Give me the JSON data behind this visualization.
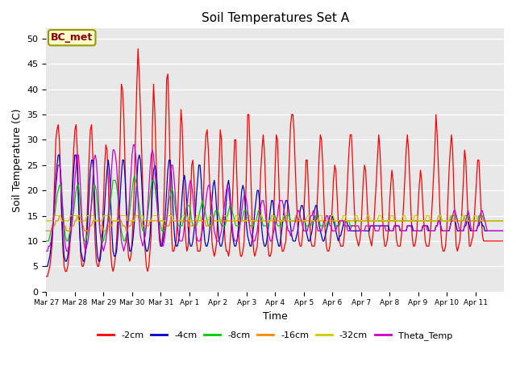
{
  "title": "Soil Temperatures Set A",
  "xlabel": "Time",
  "ylabel": "Soil Temperature (C)",
  "ylim": [
    0,
    52
  ],
  "background_color": "#e8e8e8",
  "annotation": "BC_met",
  "series_colors": {
    "-2cm": "#ff0000",
    "-4cm": "#0000cc",
    "-8cm": "#00cc00",
    "-16cm": "#ff8800",
    "-32cm": "#cccc00",
    "Theta_Temp": "#cc00cc"
  },
  "x_labels": [
    "Mar 27",
    "Mar 28",
    "Mar 29",
    "Mar 30",
    "Mar 31",
    "Apr 1",
    "Apr 2",
    "Apr 3",
    "Apr 4",
    "Apr 5",
    "Apr 6",
    "Apr 7",
    "Apr 8",
    "Apr 9",
    "Apr 10",
    "Apr 11"
  ],
  "n_days": 16,
  "pts_per_day": 24,
  "data_2cm": [
    3,
    3,
    4,
    5,
    7,
    10,
    15,
    22,
    30,
    32,
    33,
    30,
    22,
    14,
    8,
    5,
    4,
    4,
    5,
    7,
    10,
    16,
    22,
    28,
    32,
    33,
    28,
    20,
    12,
    7,
    5,
    5,
    6,
    9,
    13,
    20,
    27,
    32,
    33,
    27,
    18,
    10,
    6,
    5,
    5,
    7,
    9,
    12,
    18,
    25,
    29,
    28,
    22,
    14,
    8,
    5,
    4,
    5,
    7,
    10,
    15,
    22,
    30,
    41,
    40,
    35,
    26,
    17,
    10,
    7,
    6,
    7,
    10,
    15,
    22,
    32,
    41,
    48,
    43,
    36,
    28,
    20,
    12,
    8,
    5,
    4,
    5,
    8,
    11,
    32,
    41,
    36,
    28,
    20,
    14,
    10,
    9,
    9,
    12,
    20,
    30,
    42,
    43,
    35,
    22,
    12,
    8,
    8,
    9,
    10,
    14,
    20,
    27,
    36,
    33,
    25,
    15,
    10,
    8,
    9,
    12,
    18,
    25,
    26,
    22,
    16,
    10,
    8,
    8,
    8,
    10,
    14,
    20,
    27,
    31,
    32,
    28,
    22,
    16,
    10,
    8,
    7,
    8,
    10,
    16,
    25,
    32,
    30,
    22,
    15,
    10,
    8,
    8,
    7,
    9,
    12,
    17,
    23,
    30,
    30,
    22,
    14,
    9,
    7,
    7,
    8,
    10,
    16,
    24,
    35,
    35,
    28,
    20,
    12,
    8,
    7,
    8,
    9,
    12,
    18,
    24,
    28,
    31,
    28,
    21,
    14,
    9,
    7,
    7,
    8,
    11,
    16,
    24,
    31,
    30,
    23,
    15,
    10,
    8,
    8,
    9,
    10,
    14,
    20,
    27,
    33,
    35,
    35,
    31,
    24,
    18,
    13,
    10,
    9,
    9,
    11,
    15,
    20,
    26,
    26,
    20,
    14,
    10,
    9,
    9,
    9,
    11,
    16,
    21,
    27,
    31,
    30,
    25,
    18,
    12,
    9,
    8,
    8,
    9,
    12,
    17,
    22,
    25,
    24,
    19,
    14,
    10,
    9,
    9,
    9,
    11,
    14,
    18,
    23,
    28,
    31,
    31,
    26,
    19,
    14,
    11,
    10,
    9,
    10,
    12,
    17,
    22,
    25,
    24,
    19,
    14,
    11,
    10,
    9,
    11,
    14,
    18,
    22,
    27,
    31,
    28,
    22,
    16,
    11,
    9,
    9,
    10,
    12,
    17,
    21,
    24,
    22,
    17,
    13,
    10,
    9,
    9,
    9,
    11,
    14,
    18,
    23,
    28,
    31,
    28,
    22,
    16,
    11,
    9,
    9,
    10,
    12,
    17,
    21,
    24,
    22,
    17,
    13,
    10,
    9,
    9,
    9,
    11,
    14,
    18,
    23,
    28,
    35,
    31,
    25,
    18,
    12,
    9,
    8,
    8,
    9,
    12,
    18,
    24,
    28,
    31,
    28,
    20,
    14,
    9,
    8,
    9,
    10,
    13,
    17,
    22,
    28,
    26,
    20,
    14,
    9,
    9,
    10,
    11,
    14,
    18,
    22,
    26,
    26,
    21,
    15,
    11,
    10,
    10,
    10,
    10,
    10,
    10,
    10,
    10,
    10,
    10,
    10,
    10,
    10,
    10,
    10,
    10,
    10
  ],
  "data_4cm": [
    5,
    5,
    6,
    7,
    9,
    11,
    14,
    18,
    22,
    25,
    27,
    27,
    23,
    16,
    10,
    7,
    6,
    6,
    7,
    9,
    12,
    16,
    20,
    24,
    27,
    27,
    24,
    18,
    12,
    8,
    7,
    6,
    6,
    8,
    11,
    15,
    20,
    24,
    26,
    26,
    22,
    16,
    10,
    7,
    6,
    6,
    8,
    10,
    13,
    17,
    21,
    24,
    26,
    24,
    18,
    12,
    8,
    7,
    7,
    8,
    11,
    15,
    19,
    23,
    26,
    26,
    23,
    18,
    13,
    10,
    8,
    8,
    9,
    11,
    14,
    18,
    22,
    26,
    27,
    26,
    22,
    17,
    12,
    9,
    8,
    8,
    9,
    11,
    15,
    20,
    24,
    25,
    24,
    21,
    16,
    12,
    9,
    9,
    10,
    12,
    16,
    20,
    24,
    26,
    26,
    23,
    18,
    13,
    10,
    9,
    9,
    10,
    12,
    15,
    19,
    22,
    23,
    21,
    17,
    13,
    10,
    9,
    9,
    10,
    12,
    15,
    19,
    22,
    25,
    25,
    22,
    17,
    13,
    10,
    9,
    9,
    10,
    12,
    15,
    18,
    21,
    22,
    20,
    16,
    13,
    10,
    9,
    9,
    10,
    12,
    14,
    18,
    21,
    22,
    20,
    16,
    12,
    10,
    9,
    9,
    10,
    12,
    14,
    17,
    20,
    21,
    20,
    17,
    13,
    11,
    10,
    9,
    9,
    11,
    13,
    16,
    18,
    20,
    20,
    18,
    15,
    12,
    10,
    9,
    9,
    10,
    12,
    14,
    16,
    18,
    18,
    16,
    13,
    11,
    10,
    9,
    9,
    11,
    13,
    15,
    17,
    18,
    18,
    17,
    15,
    13,
    11,
    10,
    10,
    10,
    11,
    12,
    14,
    16,
    17,
    17,
    16,
    14,
    12,
    11,
    10,
    10,
    11,
    12,
    14,
    16,
    17,
    17,
    15,
    13,
    12,
    11,
    10,
    10,
    11,
    12,
    13,
    14,
    15,
    15,
    15,
    14,
    13,
    12,
    11,
    10,
    11,
    11,
    12,
    13,
    14,
    14,
    14,
    13,
    13,
    12,
    12,
    12,
    12,
    12,
    12,
    12,
    12,
    12,
    12,
    12,
    12,
    12,
    12,
    12,
    12,
    12,
    13,
    13,
    13,
    13,
    13,
    13,
    13,
    13,
    13,
    13,
    13,
    13,
    13,
    13,
    13,
    13,
    12,
    12,
    12,
    12,
    13,
    13,
    13,
    13,
    13,
    12,
    12,
    12,
    12,
    12,
    12,
    13,
    13,
    13,
    13,
    13,
    12,
    12,
    12,
    12,
    12,
    12,
    12,
    12,
    13,
    13,
    13,
    13,
    13,
    12,
    12,
    12,
    12,
    12,
    12,
    13,
    13,
    14,
    14,
    13,
    12,
    12,
    12,
    12,
    12,
    12,
    12,
    13,
    14,
    14,
    14,
    14,
    13,
    12,
    12,
    12,
    12,
    12,
    12,
    13,
    13,
    14,
    14,
    13,
    12,
    12,
    12,
    12,
    12,
    12,
    13,
    13,
    14,
    14,
    13,
    13,
    12,
    12,
    12,
    12,
    12,
    12,
    12,
    12,
    12,
    12,
    12,
    12,
    12,
    12,
    12,
    12
  ],
  "data_8cm": [
    10,
    10,
    10,
    11,
    12,
    13,
    14,
    15,
    17,
    19,
    20,
    21,
    21,
    19,
    16,
    13,
    11,
    10,
    10,
    11,
    12,
    13,
    14,
    16,
    18,
    20,
    21,
    21,
    19,
    16,
    13,
    11,
    10,
    10,
    11,
    12,
    13,
    15,
    17,
    19,
    21,
    21,
    20,
    17,
    14,
    12,
    11,
    10,
    10,
    11,
    12,
    13,
    14,
    16,
    18,
    20,
    22,
    22,
    22,
    21,
    19,
    16,
    14,
    12,
    11,
    10,
    10,
    11,
    12,
    14,
    16,
    18,
    20,
    22,
    23,
    22,
    21,
    19,
    17,
    15,
    13,
    12,
    12,
    12,
    13,
    15,
    17,
    19,
    21,
    22,
    22,
    21,
    19,
    17,
    15,
    14,
    13,
    12,
    12,
    12,
    13,
    14,
    16,
    18,
    19,
    20,
    20,
    19,
    17,
    15,
    14,
    13,
    13,
    13,
    13,
    14,
    15,
    16,
    17,
    17,
    17,
    16,
    14,
    13,
    13,
    13,
    13,
    14,
    15,
    16,
    17,
    18,
    17,
    16,
    15,
    14,
    13,
    13,
    13,
    13,
    14,
    15,
    16,
    16,
    16,
    15,
    14,
    13,
    13,
    13,
    13,
    14,
    15,
    16,
    17,
    17,
    16,
    15,
    14,
    13,
    13,
    13,
    13,
    14,
    14,
    15,
    16,
    16,
    16,
    15,
    14,
    13,
    13,
    13,
    13,
    14,
    14,
    15,
    16,
    16,
    15,
    14,
    13,
    13,
    13,
    13,
    13,
    14,
    14,
    15,
    15,
    15,
    15,
    14,
    13,
    13,
    13,
    13,
    14,
    14,
    15,
    15,
    15,
    15,
    15,
    14,
    14,
    14,
    14,
    14,
    14,
    14,
    14,
    14,
    14,
    14,
    14,
    14,
    13,
    13,
    13,
    13,
    13,
    14,
    14,
    14,
    15,
    15,
    14,
    14,
    13,
    13,
    13,
    13,
    13,
    13,
    14,
    14,
    14,
    14,
    14,
    14,
    14,
    13,
    13,
    13,
    13,
    14,
    14,
    14,
    14,
    14,
    14,
    14,
    14,
    13,
    13,
    13,
    13,
    13,
    14,
    14,
    14,
    14,
    14,
    14,
    14,
    14,
    14,
    14,
    14,
    14,
    14,
    14,
    14,
    14,
    14,
    14,
    14,
    14,
    14,
    14,
    14,
    14,
    14,
    14,
    14,
    14,
    14,
    14,
    14,
    14,
    14,
    14,
    14,
    14,
    14,
    14,
    14,
    14,
    14,
    14,
    14,
    14,
    14,
    14,
    14,
    14,
    14,
    14,
    14,
    14,
    14,
    14,
    14,
    14,
    14,
    14,
    14,
    14,
    14,
    14,
    14,
    14,
    14,
    14,
    14,
    14,
    14,
    15,
    15,
    15,
    14,
    14,
    14,
    14,
    14,
    14,
    14,
    14,
    15,
    15,
    15,
    15,
    15,
    14,
    14,
    14,
    14,
    14,
    14,
    15,
    15,
    15,
    15,
    14,
    14,
    14,
    14,
    14,
    14,
    14,
    14,
    15,
    15,
    15,
    15,
    14,
    14,
    14,
    14,
    14,
    14,
    14,
    14,
    14,
    14,
    14,
    14,
    14,
    14,
    14,
    14,
    14
  ],
  "data_16cm": [
    12,
    12,
    12,
    12,
    12,
    13,
    13,
    13,
    14,
    14,
    14,
    15,
    15,
    14,
    14,
    13,
    13,
    12,
    12,
    12,
    12,
    13,
    13,
    13,
    14,
    14,
    15,
    15,
    15,
    14,
    13,
    13,
    12,
    12,
    12,
    12,
    13,
    13,
    13,
    14,
    14,
    14,
    14,
    14,
    14,
    13,
    13,
    13,
    12,
    12,
    12,
    12,
    13,
    13,
    13,
    13,
    14,
    14,
    14,
    14,
    14,
    14,
    14,
    14,
    13,
    13,
    13,
    12,
    12,
    13,
    13,
    13,
    14,
    14,
    14,
    15,
    15,
    15,
    14,
    14,
    14,
    13,
    13,
    13,
    13,
    13,
    13,
    14,
    14,
    14,
    14,
    14,
    14,
    14,
    14,
    14,
    14,
    14,
    14,
    13,
    13,
    13,
    13,
    13,
    14,
    14,
    14,
    14,
    14,
    14,
    14,
    14,
    14,
    14,
    14,
    14,
    14,
    14,
    14,
    13,
    13,
    13,
    13,
    13,
    13,
    14,
    14,
    14,
    14,
    14,
    14,
    14,
    14,
    14,
    13,
    13,
    13,
    13,
    13,
    14,
    14,
    14,
    14,
    14,
    14,
    14,
    14,
    14,
    14,
    14,
    14,
    14,
    14,
    14,
    14,
    14,
    14,
    14,
    14,
    14,
    14,
    14,
    14,
    14,
    14,
    14,
    14,
    14,
    14,
    14,
    14,
    14,
    14,
    14,
    14,
    14,
    14,
    14,
    14,
    14,
    14,
    14,
    14,
    14,
    14,
    14,
    14,
    14,
    14,
    14,
    14,
    14,
    14,
    14,
    14,
    14,
    14,
    14,
    14,
    14,
    14,
    14,
    14,
    14,
    14,
    14,
    14,
    14,
    14,
    14,
    14,
    14,
    14,
    14,
    14,
    14,
    14,
    14,
    14,
    14,
    14,
    14,
    14,
    14,
    14,
    14,
    14,
    14,
    14,
    14,
    14,
    14,
    14,
    14,
    14,
    14,
    14,
    14,
    14,
    14,
    14,
    14,
    14,
    14,
    14,
    14,
    14,
    14,
    14,
    14,
    14,
    14,
    14,
    14,
    14,
    14,
    14,
    14,
    14,
    14,
    14,
    14,
    14,
    14,
    14,
    14,
    14,
    14,
    14,
    14,
    14,
    14,
    14,
    14,
    14,
    14,
    14,
    14,
    14,
    14,
    14,
    14,
    14,
    14,
    14,
    14,
    14,
    14,
    14,
    14,
    14,
    14,
    14,
    14,
    14,
    14,
    14,
    14,
    14,
    14,
    14,
    14,
    14,
    14,
    14,
    14,
    14,
    14,
    14,
    14,
    14,
    14,
    14,
    14,
    14,
    14,
    14,
    14,
    14,
    14,
    14,
    14,
    14,
    14,
    14,
    14,
    14,
    14,
    14,
    14,
    14,
    14,
    14,
    14,
    14,
    14,
    14,
    14,
    14,
    14,
    14,
    14,
    14,
    14,
    14,
    14,
    14,
    14,
    14,
    14,
    14,
    14,
    14,
    14,
    14,
    14,
    14,
    14,
    14,
    14,
    14,
    14,
    14,
    14,
    14,
    14,
    14,
    14,
    14,
    14,
    14,
    14,
    14,
    14,
    14,
    14,
    14,
    14,
    14,
    14,
    14,
    14,
    14,
    14
  ],
  "data_32cm": [
    14,
    14,
    14,
    14,
    14,
    14,
    14,
    15,
    15,
    15,
    15,
    15,
    15,
    14,
    14,
    14,
    14,
    14,
    14,
    14,
    15,
    15,
    15,
    15,
    15,
    15,
    15,
    14,
    14,
    14,
    14,
    14,
    14,
    14,
    15,
    15,
    15,
    15,
    15,
    15,
    15,
    14,
    14,
    14,
    14,
    14,
    14,
    14,
    15,
    15,
    15,
    15,
    15,
    15,
    15,
    14,
    14,
    14,
    14,
    14,
    14,
    14,
    15,
    15,
    15,
    15,
    15,
    15,
    14,
    14,
    14,
    14,
    14,
    14,
    14,
    15,
    15,
    15,
    15,
    15,
    15,
    15,
    14,
    14,
    14,
    14,
    14,
    14,
    14,
    15,
    15,
    15,
    15,
    15,
    15,
    14,
    14,
    14,
    14,
    14,
    14,
    14,
    15,
    15,
    15,
    15,
    15,
    14,
    14,
    14,
    14,
    14,
    14,
    14,
    15,
    15,
    15,
    15,
    15,
    14,
    14,
    14,
    14,
    14,
    14,
    14,
    15,
    15,
    15,
    15,
    14,
    14,
    14,
    14,
    14,
    14,
    14,
    15,
    15,
    15,
    15,
    14,
    14,
    14,
    14,
    14,
    14,
    14,
    15,
    15,
    15,
    15,
    14,
    14,
    14,
    14,
    14,
    14,
    14,
    15,
    15,
    15,
    14,
    14,
    14,
    14,
    14,
    14,
    14,
    15,
    15,
    15,
    14,
    14,
    14,
    14,
    14,
    14,
    14,
    15,
    15,
    15,
    14,
    14,
    14,
    14,
    14,
    14,
    14,
    15,
    15,
    15,
    14,
    14,
    14,
    14,
    14,
    14,
    14,
    15,
    15,
    15,
    14,
    14,
    14,
    14,
    14,
    14,
    14,
    15,
    15,
    15,
    15,
    14,
    14,
    14,
    14,
    14,
    14,
    15,
    15,
    15,
    14,
    14,
    14,
    14,
    14,
    14,
    14,
    15,
    15,
    15,
    14,
    14,
    14,
    14,
    14,
    14,
    14,
    15,
    15,
    15,
    14,
    14,
    14,
    14,
    14,
    14,
    14,
    15,
    15,
    15,
    14,
    14,
    14,
    14,
    14,
    14,
    14,
    15,
    15,
    15,
    14,
    14,
    14,
    14,
    14,
    14,
    14,
    15,
    15,
    15,
    14,
    14,
    14,
    14,
    14,
    14,
    14,
    15,
    15,
    15,
    14,
    14,
    14,
    14,
    14,
    14,
    14,
    15,
    15,
    15,
    14,
    14,
    14,
    14,
    14,
    14,
    14,
    15,
    15,
    15,
    14,
    14,
    14,
    14,
    14,
    14,
    14,
    15,
    15,
    15,
    14,
    14,
    14,
    14,
    14,
    14,
    14,
    15,
    15,
    15,
    14,
    14,
    14,
    14,
    14,
    14,
    14,
    15,
    15,
    15,
    14,
    14,
    14,
    14,
    14,
    14,
    14,
    15,
    15,
    15,
    14,
    14,
    14,
    14,
    14,
    14,
    14,
    15,
    15,
    15,
    14,
    14,
    14,
    14,
    14,
    14,
    14,
    15,
    15,
    15,
    14,
    14,
    14,
    14,
    14,
    14,
    14,
    14,
    14,
    14,
    14,
    14,
    14,
    14,
    14,
    14,
    14,
    14,
    14,
    14,
    14,
    14
  ],
  "data_theta": [
    8,
    8,
    9,
    9,
    10,
    12,
    14,
    17,
    20,
    23,
    25,
    25,
    24,
    20,
    15,
    11,
    9,
    8,
    8,
    9,
    10,
    12,
    15,
    18,
    22,
    25,
    27,
    27,
    24,
    19,
    14,
    11,
    9,
    8,
    9,
    10,
    12,
    15,
    18,
    22,
    26,
    27,
    26,
    22,
    17,
    12,
    10,
    9,
    8,
    9,
    10,
    12,
    15,
    18,
    21,
    25,
    28,
    28,
    27,
    25,
    21,
    17,
    13,
    10,
    9,
    8,
    9,
    10,
    12,
    15,
    19,
    23,
    27,
    29,
    29,
    27,
    23,
    18,
    14,
    11,
    10,
    9,
    10,
    11,
    13,
    16,
    20,
    24,
    27,
    28,
    27,
    24,
    21,
    17,
    14,
    11,
    10,
    9,
    9,
    10,
    12,
    14,
    17,
    20,
    23,
    25,
    25,
    23,
    20,
    16,
    13,
    11,
    10,
    10,
    10,
    11,
    13,
    15,
    17,
    19,
    21,
    22,
    21,
    19,
    16,
    13,
    11,
    10,
    10,
    10,
    11,
    12,
    14,
    16,
    18,
    20,
    21,
    21,
    19,
    17,
    14,
    12,
    11,
    10,
    10,
    10,
    11,
    12,
    14,
    16,
    18,
    20,
    21,
    20,
    18,
    15,
    13,
    11,
    10,
    10,
    10,
    11,
    12,
    14,
    16,
    18,
    19,
    19,
    18,
    16,
    14,
    12,
    11,
    10,
    10,
    10,
    11,
    12,
    14,
    15,
    17,
    18,
    18,
    17,
    15,
    13,
    12,
    11,
    10,
    10,
    11,
    12,
    13,
    14,
    15,
    17,
    18,
    18,
    18,
    17,
    15,
    14,
    13,
    12,
    12,
    11,
    12,
    12,
    13,
    14,
    15,
    16,
    16,
    15,
    14,
    13,
    12,
    12,
    12,
    12,
    13,
    14,
    15,
    15,
    16,
    15,
    14,
    13,
    12,
    12,
    12,
    12,
    13,
    14,
    14,
    15,
    15,
    14,
    13,
    13,
    12,
    12,
    12,
    12,
    13,
    13,
    14,
    14,
    14,
    14,
    13,
    13,
    13,
    12,
    12,
    12,
    13,
    13,
    13,
    13,
    13,
    13,
    13,
    12,
    12,
    12,
    12,
    12,
    13,
    13,
    13,
    13,
    13,
    13,
    13,
    13,
    12,
    12,
    12,
    12,
    13,
    13,
    13,
    13,
    13,
    12,
    12,
    12,
    12,
    12,
    12,
    12,
    13,
    13,
    13,
    13,
    13,
    12,
    12,
    12,
    12,
    12,
    12,
    13,
    13,
    13,
    13,
    12,
    12,
    12,
    12,
    12,
    12,
    12,
    12,
    12,
    13,
    13,
    13,
    13,
    12,
    12,
    12,
    12,
    12,
    12,
    12,
    13,
    13,
    14,
    14,
    13,
    12,
    12,
    12,
    12,
    12,
    12,
    12,
    13,
    14,
    15,
    16,
    16,
    15,
    14,
    13,
    12,
    12,
    12,
    12,
    13,
    14,
    15,
    16,
    15,
    13,
    12,
    12,
    12,
    12,
    12,
    13,
    14,
    15,
    16,
    16,
    15,
    14,
    13,
    12,
    12,
    12,
    12,
    12,
    12,
    12,
    12,
    12,
    12,
    12,
    12,
    12,
    12
  ]
}
